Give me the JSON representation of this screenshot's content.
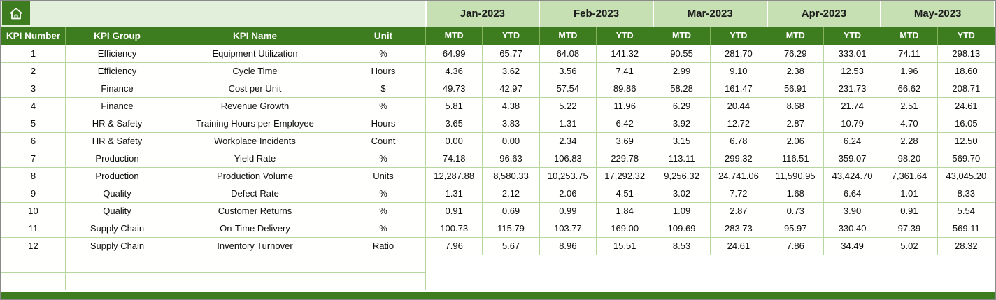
{
  "colors": {
    "header_green": "#3e7c20",
    "month_header_green": "#c6e0b4",
    "pale_green": "#e2efda",
    "gridline_green": "#b7d7a0"
  },
  "table": {
    "corner": {
      "icon": "home-icon"
    },
    "column_headers": [
      "KPI Number",
      "KPI Group",
      "KPI Name",
      "Unit"
    ],
    "months": [
      "Jan-2023",
      "Feb-2023",
      "Mar-2023",
      "Apr-2023",
      "May-2023"
    ],
    "sub_headers": [
      "MTD",
      "YTD"
    ],
    "rows": [
      {
        "kpi_number": "1",
        "kpi_group": "Efficiency",
        "kpi_name": "Equipment Utilization",
        "unit": "%",
        "values": [
          "64.99",
          "65.77",
          "64.08",
          "141.32",
          "90.55",
          "281.70",
          "76.29",
          "333.01",
          "74.11",
          "298.13"
        ]
      },
      {
        "kpi_number": "2",
        "kpi_group": "Efficiency",
        "kpi_name": "Cycle Time",
        "unit": "Hours",
        "values": [
          "4.36",
          "3.62",
          "3.56",
          "7.41",
          "2.99",
          "9.10",
          "2.38",
          "12.53",
          "1.96",
          "18.60"
        ]
      },
      {
        "kpi_number": "3",
        "kpi_group": "Finance",
        "kpi_name": "Cost per Unit",
        "unit": "$",
        "values": [
          "49.73",
          "42.97",
          "57.54",
          "89.86",
          "58.28",
          "161.47",
          "56.91",
          "231.73",
          "66.62",
          "208.71"
        ]
      },
      {
        "kpi_number": "4",
        "kpi_group": "Finance",
        "kpi_name": "Revenue Growth",
        "unit": "%",
        "values": [
          "5.81",
          "4.38",
          "5.22",
          "11.96",
          "6.29",
          "20.44",
          "8.68",
          "21.74",
          "2.51",
          "24.61"
        ]
      },
      {
        "kpi_number": "5",
        "kpi_group": "HR & Safety",
        "kpi_name": "Training Hours per Employee",
        "unit": "Hours",
        "values": [
          "3.65",
          "3.83",
          "1.31",
          "6.42",
          "3.92",
          "12.72",
          "2.87",
          "10.79",
          "4.70",
          "16.05"
        ]
      },
      {
        "kpi_number": "6",
        "kpi_group": "HR & Safety",
        "kpi_name": "Workplace Incidents",
        "unit": "Count",
        "values": [
          "0.00",
          "0.00",
          "2.34",
          "3.69",
          "3.15",
          "6.78",
          "2.06",
          "6.24",
          "2.28",
          "12.50"
        ]
      },
      {
        "kpi_number": "7",
        "kpi_group": "Production",
        "kpi_name": "Yield Rate",
        "unit": "%",
        "values": [
          "74.18",
          "96.63",
          "106.83",
          "229.78",
          "113.11",
          "299.32",
          "116.51",
          "359.07",
          "98.20",
          "569.70"
        ]
      },
      {
        "kpi_number": "8",
        "kpi_group": "Production",
        "kpi_name": "Production Volume",
        "unit": "Units",
        "values": [
          "12,287.88",
          "8,580.33",
          "10,253.75",
          "17,292.32",
          "9,256.32",
          "24,741.06",
          "11,590.95",
          "43,424.70",
          "7,361.64",
          "43,045.20"
        ]
      },
      {
        "kpi_number": "9",
        "kpi_group": "Quality",
        "kpi_name": "Defect Rate",
        "unit": "%",
        "values": [
          "1.31",
          "2.12",
          "2.06",
          "4.51",
          "3.02",
          "7.72",
          "1.68",
          "6.64",
          "1.01",
          "8.33"
        ]
      },
      {
        "kpi_number": "10",
        "kpi_group": "Quality",
        "kpi_name": "Customer Returns",
        "unit": "%",
        "values": [
          "0.91",
          "0.69",
          "0.99",
          "1.84",
          "1.09",
          "2.87",
          "0.73",
          "3.90",
          "0.91",
          "5.54"
        ]
      },
      {
        "kpi_number": "11",
        "kpi_group": "Supply Chain",
        "kpi_name": "On-Time Delivery",
        "unit": "%",
        "values": [
          "100.73",
          "115.79",
          "103.77",
          "169.00",
          "109.69",
          "283.73",
          "95.97",
          "330.40",
          "97.39",
          "569.11"
        ]
      },
      {
        "kpi_number": "12",
        "kpi_group": "Supply Chain",
        "kpi_name": "Inventory Turnover",
        "unit": "Ratio",
        "values": [
          "7.96",
          "5.67",
          "8.96",
          "15.51",
          "8.53",
          "24.61",
          "7.86",
          "34.49",
          "5.02",
          "28.32"
        ]
      }
    ],
    "empty_row_count": 2
  }
}
